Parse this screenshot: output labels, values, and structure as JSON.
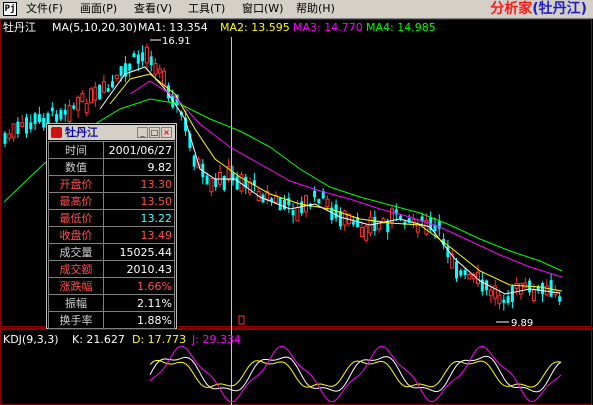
{
  "menubar": {
    "app_icon_glyph": "Pj",
    "items": [
      "文件(F)",
      "画面(P)",
      "查看(V)",
      "工具(T)",
      "窗口(W)",
      "帮助(H)"
    ],
    "brand_main": "分析家",
    "brand_stock": "(牡丹江)"
  },
  "chart_header": {
    "stock_name": "牡丹江",
    "ma_params": "MA(5,10,20,30)",
    "ma1": "MA1: 13.354",
    "ma2": "MA2: 13.595",
    "ma3": "MA3: 14.770",
    "ma4": "MA4: 14.985"
  },
  "annotations": {
    "high_label": "16.91",
    "low_label": "9.89"
  },
  "popup": {
    "title": "牡丹江",
    "rows": [
      {
        "label": "时间",
        "value": "2001/06/27"
      },
      {
        "label": "数值",
        "value": "9.82"
      },
      {
        "label": "开盘价",
        "value": "13.30"
      },
      {
        "label": "最高价",
        "value": "13.50"
      },
      {
        "label": "最低价",
        "value": "13.22"
      },
      {
        "label": "收盘价",
        "value": "13.49"
      },
      {
        "label": "成交量",
        "value": "15025.44"
      },
      {
        "label": "成交额",
        "value": "2010.43"
      },
      {
        "label": "涨跌幅",
        "value": "1.66%"
      },
      {
        "label": "振幅",
        "value": "2.11%"
      },
      {
        "label": "换手率",
        "value": "1.88%"
      }
    ]
  },
  "kdj": {
    "params": "KDJ(9,3,3)",
    "k": "K: 21.627",
    "d": "D: 17.773",
    "j": "J: 29.334"
  },
  "colors": {
    "up_candle": "#ff3030",
    "down_candle": "#00ffff",
    "ma1": "#ffffff",
    "ma2": "#ffff00",
    "ma3": "#ff00ff",
    "ma4": "#00ff00",
    "label_red": "#ff5050",
    "label_cyan": "#40ffff",
    "label_white": "#ffffff"
  }
}
